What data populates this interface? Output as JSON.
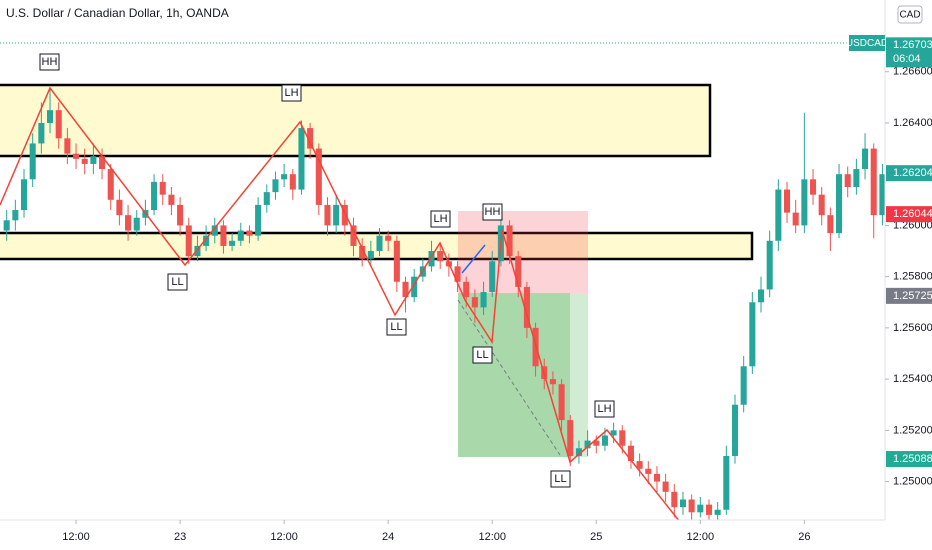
{
  "chart_data": {
    "type": "candlestick",
    "title": "U.S. Dollar / Canadian Dollar, 1h, OANDA",
    "currency": "CAD",
    "symbol": "USDCAD",
    "countdown": "06:04",
    "up_color": "#26a69a",
    "down_color": "#ef5350",
    "x": [
      4,
      5,
      6,
      7,
      8,
      9,
      10,
      11,
      12,
      13,
      14,
      15,
      16,
      17,
      18,
      19,
      20,
      21,
      22,
      23,
      24,
      25,
      26,
      27,
      28,
      29,
      30,
      31,
      32,
      33,
      34,
      35,
      36,
      37,
      38,
      39,
      40,
      41,
      42,
      43,
      44,
      45,
      46,
      47,
      48,
      49,
      50,
      51,
      52,
      53,
      54,
      55,
      56,
      57,
      58,
      59,
      60,
      61,
      62,
      63,
      64,
      65,
      66,
      67,
      68,
      69,
      70,
      71,
      72,
      73,
      74,
      75,
      76,
      77,
      78,
      79,
      80,
      81,
      82,
      83,
      84,
      85,
      86,
      87,
      88,
      89,
      90,
      91,
      92,
      93,
      94,
      95,
      96,
      97,
      98,
      99,
      100,
      101,
      102,
      103,
      104,
      105
    ],
    "open": [
      1.2598,
      1.2602,
      1.2606,
      1.2618,
      1.2632,
      1.264,
      1.2645,
      1.2634,
      1.2628,
      1.2626,
      1.2624,
      1.2627,
      1.2622,
      1.261,
      1.2604,
      1.2598,
      1.2603,
      1.2606,
      1.2617,
      1.2612,
      1.2608,
      1.26,
      1.2588,
      1.2592,
      1.2596,
      1.26,
      1.2592,
      1.2594,
      1.2598,
      1.2596,
      1.2608,
      1.2613,
      1.2618,
      1.262,
      1.2614,
      1.2638,
      1.263,
      1.2608,
      1.26,
      1.2608,
      1.26,
      1.2592,
      1.2587,
      1.259,
      1.2596,
      1.2594,
      1.2578,
      1.2572,
      1.258,
      1.2584,
      1.259,
      1.2586,
      1.2584,
      1.2578,
      1.2572,
      1.2568,
      1.2574,
      1.2586,
      1.26,
      1.2588,
      1.2576,
      1.256,
      1.2545,
      1.254,
      1.2538,
      1.2524,
      1.251,
      1.2513,
      1.2516,
      1.2514,
      1.2518,
      1.252,
      1.2514,
      1.2508,
      1.2505,
      1.2503,
      1.25,
      1.2496,
      1.249,
      1.2493,
      1.2488,
      1.2491,
      1.2487,
      1.2489,
      1.251,
      1.253,
      1.2545,
      1.257,
      1.2575,
      1.2594,
      1.2614,
      1.2605,
      1.26,
      1.2618,
      1.2612,
      1.2604,
      1.2597,
      1.262,
      1.2615,
      1.2622,
      1.263,
      1.2604
    ],
    "high": [
      1.2606,
      1.261,
      1.2622,
      1.2636,
      1.2648,
      1.2654,
      1.2648,
      1.2638,
      1.2632,
      1.263,
      1.2632,
      1.263,
      1.2624,
      1.2614,
      1.2608,
      1.2606,
      1.261,
      1.262,
      1.262,
      1.2615,
      1.2611,
      1.2603,
      1.2596,
      1.26,
      1.2603,
      1.2602,
      1.2597,
      1.2601,
      1.26,
      1.2611,
      1.2616,
      1.2621,
      1.2624,
      1.2622,
      1.2641,
      1.264,
      1.2632,
      1.2611,
      1.2612,
      1.261,
      1.2603,
      1.2595,
      1.2594,
      1.2599,
      1.2598,
      1.2596,
      1.258,
      1.2583,
      1.2587,
      1.2594,
      1.2593,
      1.2589,
      1.2586,
      1.258,
      1.2575,
      1.2578,
      1.259,
      1.2602,
      1.2602,
      1.259,
      1.2578,
      1.2562,
      1.2548,
      1.2543,
      1.254,
      1.2526,
      1.2516,
      1.252,
      1.2518,
      1.2521,
      1.2523,
      1.2522,
      1.2516,
      1.2511,
      1.2508,
      1.2506,
      1.2503,
      1.2499,
      1.2496,
      1.2495,
      1.2494,
      1.2493,
      1.2492,
      1.2514,
      1.2534,
      1.2549,
      1.2574,
      1.258,
      1.2598,
      1.2618,
      1.2617,
      1.261,
      1.2644,
      1.2622,
      1.2615,
      1.2607,
      1.2624,
      1.2623,
      1.2626,
      1.2636,
      1.2632,
      1.2624
    ],
    "low": [
      1.2594,
      1.2598,
      1.2603,
      1.2615,
      1.2628,
      1.2636,
      1.263,
      1.2624,
      1.2622,
      1.262,
      1.262,
      1.2618,
      1.2606,
      1.26,
      1.2594,
      1.2596,
      1.26,
      1.2604,
      1.2608,
      1.2604,
      1.2596,
      1.2585,
      1.2586,
      1.259,
      1.2593,
      1.2589,
      1.259,
      1.2592,
      1.2593,
      1.2594,
      1.2605,
      1.261,
      1.2615,
      1.261,
      1.2612,
      1.2626,
      1.2604,
      1.2596,
      1.2597,
      1.2596,
      1.2588,
      1.2584,
      1.2585,
      1.2588,
      1.259,
      1.2574,
      1.2566,
      1.257,
      1.2578,
      1.2582,
      1.2583,
      1.258,
      1.2574,
      1.2568,
      1.2562,
      1.2565,
      1.2572,
      1.2584,
      1.2585,
      1.2572,
      1.2556,
      1.2541,
      1.2536,
      1.2534,
      1.252,
      1.2506,
      1.2507,
      1.251,
      1.2511,
      1.2512,
      1.2515,
      1.2511,
      1.2505,
      1.2502,
      1.2499,
      1.2496,
      1.2492,
      1.2486,
      1.2487,
      1.2485,
      1.2486,
      1.2485,
      1.2485,
      1.2487,
      1.2507,
      1.2527,
      1.2542,
      1.2566,
      1.2572,
      1.259,
      1.2601,
      1.2597,
      1.2597,
      1.2608,
      1.26,
      1.259,
      1.2595,
      1.2611,
      1.2612,
      1.2618,
      1.2595,
      1.26
    ],
    "close": [
      1.2602,
      1.2606,
      1.2618,
      1.2632,
      1.264,
      1.2645,
      1.2634,
      1.2628,
      1.2626,
      1.2624,
      1.2627,
      1.2622,
      1.261,
      1.2604,
      1.2598,
      1.2603,
      1.2606,
      1.2617,
      1.2612,
      1.2608,
      1.26,
      1.2588,
      1.2592,
      1.2596,
      1.26,
      1.2592,
      1.2594,
      1.2598,
      1.2596,
      1.2608,
      1.2613,
      1.2618,
      1.262,
      1.2614,
      1.2638,
      1.263,
      1.2608,
      1.26,
      1.2608,
      1.26,
      1.2592,
      1.2587,
      1.259,
      1.2596,
      1.2594,
      1.2578,
      1.2572,
      1.258,
      1.2584,
      1.259,
      1.2586,
      1.2584,
      1.2578,
      1.2572,
      1.2568,
      1.2574,
      1.2586,
      1.26,
      1.2588,
      1.2576,
      1.256,
      1.2545,
      1.254,
      1.2538,
      1.2524,
      1.251,
      1.2513,
      1.2516,
      1.2514,
      1.2518,
      1.252,
      1.2514,
      1.2508,
      1.2505,
      1.2503,
      1.25,
      1.2496,
      1.249,
      1.2493,
      1.2488,
      1.2491,
      1.2487,
      1.2489,
      1.251,
      1.253,
      1.2545,
      1.257,
      1.2575,
      1.2594,
      1.2614,
      1.2605,
      1.26,
      1.2618,
      1.2612,
      1.2604,
      1.2597,
      1.262,
      1.2615,
      1.2622,
      1.263,
      1.2604,
      1.262
    ],
    "xlim": [
      3.23,
      105.3
    ],
    "ylim": [
      1.2485,
      1.2688
    ],
    "xticks": [
      {
        "value": 12,
        "label": "12:00"
      },
      {
        "value": 24,
        "label": "23"
      },
      {
        "value": 36,
        "label": "12:00"
      },
      {
        "value": 48,
        "label": "24"
      },
      {
        "value": 60,
        "label": "12:00"
      },
      {
        "value": 72,
        "label": "25"
      },
      {
        "value": 84,
        "label": "12:00"
      },
      {
        "value": 96,
        "label": "26"
      }
    ],
    "yticks": [
      {
        "value": 1.266,
        "label": "1.26600"
      },
      {
        "value": 1.264,
        "label": "1.26400"
      },
      {
        "value": 1.26,
        "label": "1.26000"
      },
      {
        "value": 1.258,
        "label": "1.25800"
      },
      {
        "value": 1.256,
        "label": "1.25600"
      },
      {
        "value": 1.254,
        "label": "1.25400"
      },
      {
        "value": 1.252,
        "label": "1.25200"
      },
      {
        "value": 1.25,
        "label": "1.25000"
      }
    ],
    "price_labels": [
      {
        "value": 1.26703,
        "label": "1.26703",
        "color": "#26a69a"
      },
      {
        "value": 1.26204,
        "label": "1.26204",
        "color": "#26a69a"
      },
      {
        "value": 1.26044,
        "label": "1.26044",
        "color": "#f23645"
      },
      {
        "value": 1.25725,
        "label": "1.25725",
        "color": "#787b86"
      },
      {
        "value": 1.25088,
        "label": "1.25088",
        "color": "#22ab94"
      }
    ],
    "pivot_labels": [
      "HH",
      "LH",
      "LL",
      "LL",
      "LH",
      "HH",
      "LL",
      "LL",
      "LH"
    ]
  }
}
